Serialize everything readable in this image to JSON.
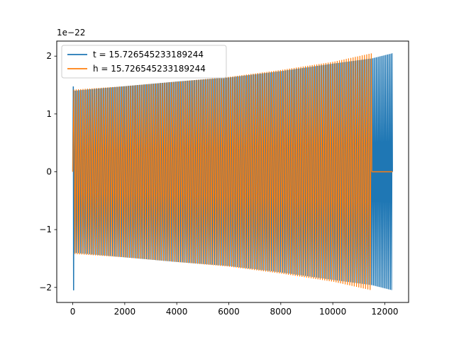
{
  "chart_data": {
    "type": "line",
    "title": "",
    "xlabel": "",
    "ylabel": "",
    "scale_label": "1e−22",
    "x_ticks": [
      {
        "value": 0,
        "label": "0"
      },
      {
        "value": 2000,
        "label": "2000"
      },
      {
        "value": 4000,
        "label": "4000"
      },
      {
        "value": 6000,
        "label": "6000"
      },
      {
        "value": 8000,
        "label": "8000"
      },
      {
        "value": 10000,
        "label": "10000"
      },
      {
        "value": 12000,
        "label": "12000"
      }
    ],
    "y_ticks": [
      {
        "value": -2,
        "label": "−2"
      },
      {
        "value": -1,
        "label": "−1"
      },
      {
        "value": 0,
        "label": "0"
      },
      {
        "value": 1,
        "label": "1"
      },
      {
        "value": 2,
        "label": "2"
      }
    ],
    "xlim": [
      -615,
      12915
    ],
    "ylim": [
      -2.26,
      2.26
    ],
    "grid": false,
    "legend_position": "top-left",
    "series": [
      {
        "name": "t = 15.726545233189244",
        "color": "#1f77b4",
        "x_range": [
          0,
          12300
        ],
        "spike_amplitude": 2.05,
        "envelope": [
          {
            "x": 0,
            "amp": 1.4
          },
          {
            "x": 2000,
            "amp": 1.48
          },
          {
            "x": 4000,
            "amp": 1.56
          },
          {
            "x": 6000,
            "amp": 1.63
          },
          {
            "x": 8000,
            "amp": 1.74
          },
          {
            "x": 10000,
            "amp": 1.87
          },
          {
            "x": 11500,
            "amp": 1.96
          },
          {
            "x": 12300,
            "amp": 2.05
          }
        ]
      },
      {
        "name": "h = 15.726545233189244",
        "color": "#ff7f0e",
        "x_range": [
          0,
          11500
        ],
        "zero_tail_end": 12300,
        "envelope": [
          {
            "x": 0,
            "amp": 1.42
          },
          {
            "x": 2000,
            "amp": 1.48
          },
          {
            "x": 4000,
            "amp": 1.56
          },
          {
            "x": 6000,
            "amp": 1.64
          },
          {
            "x": 8000,
            "amp": 1.76
          },
          {
            "x": 10000,
            "amp": 1.9
          },
          {
            "x": 11500,
            "amp": 2.05
          }
        ]
      }
    ]
  }
}
